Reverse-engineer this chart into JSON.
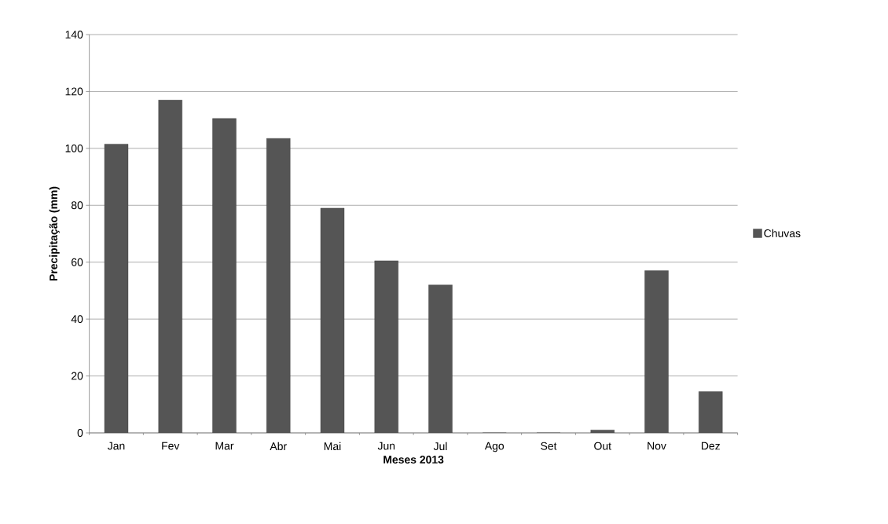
{
  "chart_data": {
    "type": "bar",
    "xlabel": "Meses 2013",
    "ylabel": "Precipitação (mm)",
    "categories": [
      "Jan",
      "Fev",
      "Mar",
      "Abr",
      "Mai",
      "Jun",
      "Jul",
      "Ago",
      "Set",
      "Out",
      "Nov",
      "Dez"
    ],
    "series": [
      {
        "name": "Chuvas",
        "color": "#555555",
        "values": [
          101.5,
          117,
          110.5,
          103.5,
          79,
          60.5,
          52,
          0,
          0,
          1,
          57,
          14.5
        ]
      }
    ],
    "ylim": [
      0,
      140
    ],
    "yticks": [
      0,
      20,
      40,
      60,
      80,
      100,
      120,
      140
    ],
    "grid": "y",
    "legend": "right"
  }
}
